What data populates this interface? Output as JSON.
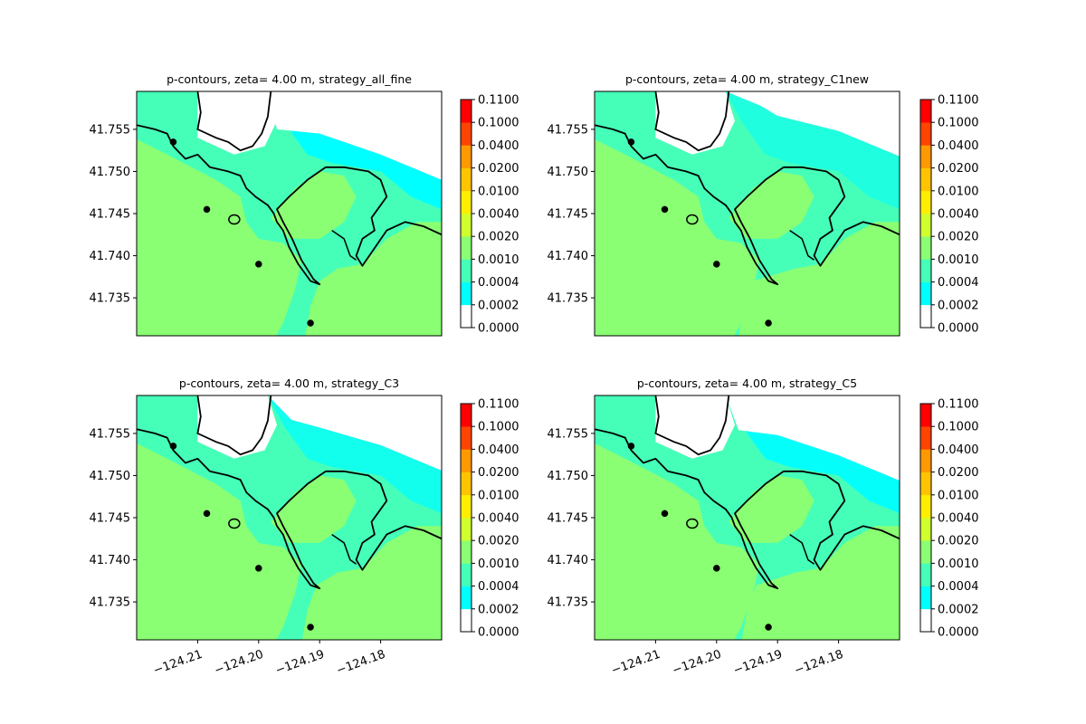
{
  "chart_data": {
    "type": "heatmap",
    "levels": [
      "0.0000",
      "0.0002",
      "0.0004",
      "0.0010",
      "0.0020",
      "0.0040",
      "0.0100",
      "0.0200",
      "0.0400",
      "0.1000",
      "0.1100"
    ],
    "level_colors": [
      "#ffffff",
      "#00ffff",
      "#45ffb9",
      "#8aff73",
      "#d0ff2e",
      "#ffee00",
      "#ffc400",
      "#ff9900",
      "#ff4400",
      "#ff0000"
    ],
    "coastline_color": "#000000",
    "x_range": [
      -124.22,
      -124.17
    ],
    "y_range": [
      41.7305,
      41.7595
    ],
    "x_ticks": [
      -124.21,
      -124.2,
      -124.19,
      -124.18
    ],
    "x_tick_labels": [
      "−124.21",
      "−124.20",
      "−124.19",
      "−124.18"
    ],
    "y_ticks": [
      41.735,
      41.74,
      41.745,
      41.75,
      41.755
    ],
    "y_tick_labels": [
      "41.735",
      "41.740",
      "41.745",
      "41.750",
      "41.755"
    ],
    "panels": [
      {
        "title": "p-contours, zeta= 4.00 m, strategy_all_fine",
        "show_x_ticks": false,
        "cyan_extent": 1.0,
        "green_bottom": -124.1925
      },
      {
        "title": "p-contours, zeta= 4.00 m, strategy_C1new",
        "show_x_ticks": false,
        "cyan_extent": 0.3,
        "green_bottom": -124.1965
      },
      {
        "title": "p-contours, zeta= 4.00 m, strategy_C3",
        "show_x_ticks": true,
        "cyan_extent": 0.6,
        "green_bottom": -124.193
      },
      {
        "title": "p-contours, zeta= 4.00 m, strategy_C5",
        "show_x_ticks": true,
        "cyan_extent": 0.9,
        "green_bottom": -124.196
      }
    ]
  }
}
